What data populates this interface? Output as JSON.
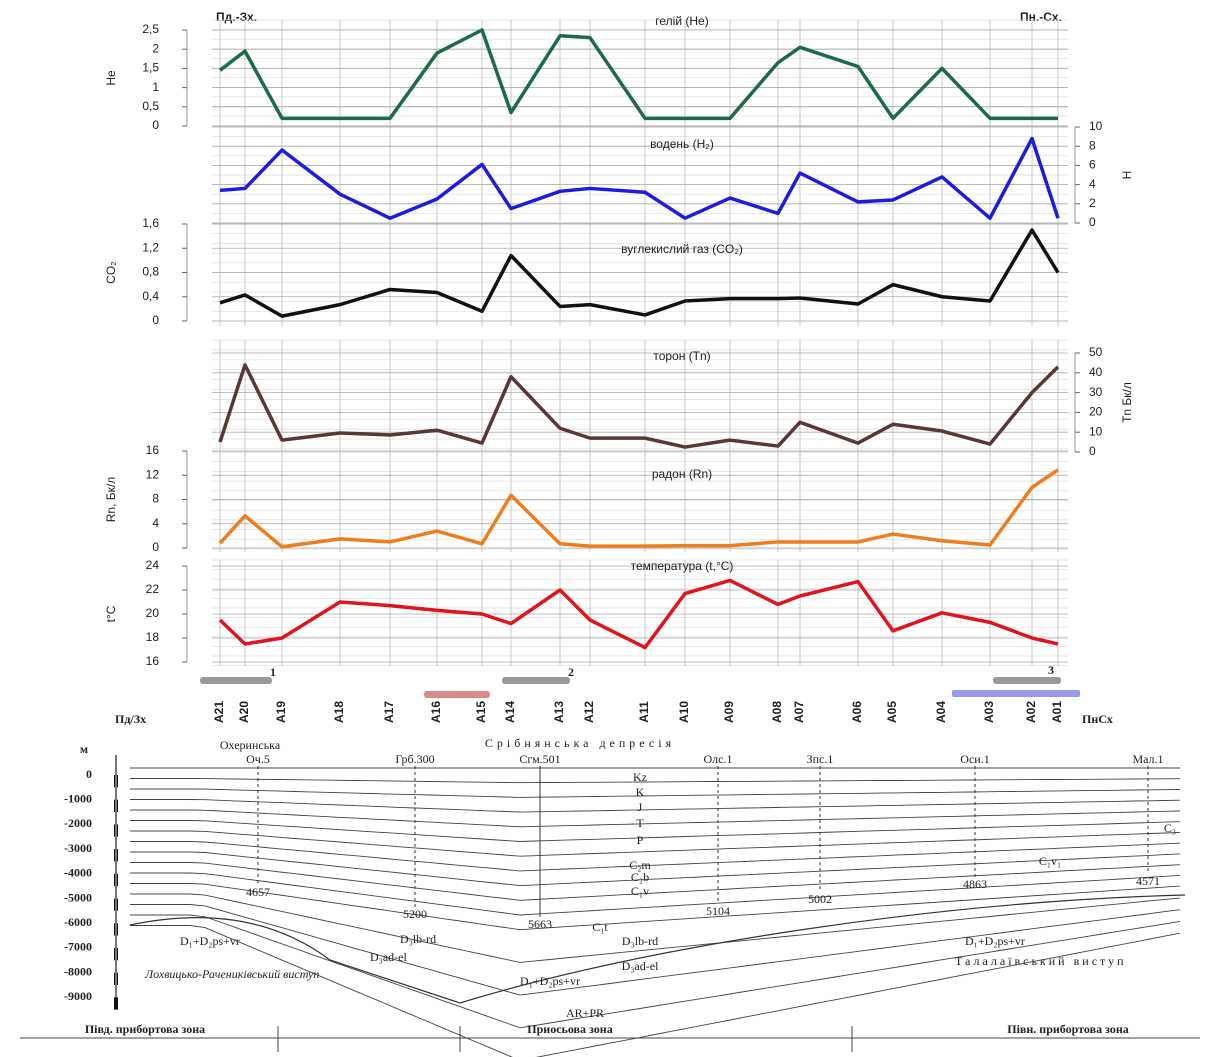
{
  "chart_data": [
    {
      "type": "line",
      "ylabel": "He",
      "ylim": [
        0,
        2.5
      ],
      "yticks": [
        0,
        {
          "value": 0.5,
          "label": "0,5"
        },
        1,
        {
          "value": 1.5,
          "label": "1,5"
        },
        2,
        {
          "value": 2.5,
          "label": "2,5"
        }
      ],
      "grid": true,
      "series": [
        {
          "name": "гелій (He)",
          "color": "#1b6b48",
          "values": [
            1.45,
            1.95,
            0.2,
            0.2,
            0.2,
            1.9,
            2.5,
            0.35,
            2.35,
            2.3,
            0.2,
            0.2,
            0.2,
            1.65,
            2.05,
            1.55,
            0.2,
            1.5,
            0.2,
            0.2,
            0.2
          ]
        }
      ]
    },
    {
      "type": "line",
      "y2label": "H",
      "y2lim": [
        0,
        10
      ],
      "y2ticks": [
        0,
        2,
        4,
        6,
        8,
        10
      ],
      "grid": true,
      "series": [
        {
          "name": "водень (H₂)",
          "color": "#1c1ce0",
          "axis": "y2",
          "values": [
            3.4,
            3.6,
            7.6,
            3,
            0.5,
            2.5,
            6.1,
            1.5,
            3.3,
            3.6,
            3.2,
            0.5,
            2.6,
            1,
            5.2,
            2.2,
            2.4,
            4.8,
            0.5,
            8.8,
            0.5
          ]
        }
      ]
    },
    {
      "type": "line",
      "ylabel": "CO₂",
      "ylim": [
        0,
        1.6
      ],
      "yticks": [
        0,
        {
          "value": 0.4,
          "label": "0,4"
        },
        {
          "value": 0.8,
          "label": "0,8"
        },
        {
          "value": 1.2,
          "label": "1,2"
        },
        {
          "value": 1.6,
          "label": "1,6"
        }
      ],
      "grid": true,
      "series": [
        {
          "name": "вуглекислий газ (CO₂)",
          "color": "#111111",
          "values": [
            0.3,
            0.43,
            0.08,
            0.27,
            0.52,
            0.47,
            0.16,
            1.08,
            0.24,
            0.27,
            0.1,
            0.33,
            0.37,
            0.37,
            0.38,
            0.28,
            0.6,
            0.4,
            0.33,
            1.5,
            0.8
          ]
        }
      ]
    },
    {
      "type": "line",
      "y2label": "Tn Бк/л",
      "y2lim": [
        0,
        50
      ],
      "y2ticks": [
        0,
        10,
        20,
        30,
        40,
        50
      ],
      "grid": true,
      "series": [
        {
          "name": "торон (Tn)",
          "color": "#5a3636",
          "axis": "y2",
          "values": [
            5,
            44,
            6,
            9.6,
            8.6,
            11,
            4.5,
            38,
            12,
            7,
            7,
            2.5,
            6,
            3,
            15,
            4.5,
            14,
            10.6,
            4,
            30,
            43
          ]
        }
      ]
    },
    {
      "type": "line",
      "ylabel": "Rn, Бк/л",
      "ylim": [
        0,
        16
      ],
      "yticks": [
        0,
        4,
        8,
        12,
        16
      ],
      "grid": true,
      "series": [
        {
          "name": "радон (Rn)",
          "color": "#ee7d1c",
          "values": [
            0.8,
            5.3,
            0.2,
            1.5,
            1,
            2.8,
            0.7,
            8.7,
            0.7,
            0.3,
            0.3,
            0.4,
            0.4,
            1,
            1,
            1,
            2.3,
            1.2,
            0.5,
            10,
            12.9
          ]
        }
      ]
    },
    {
      "type": "line",
      "ylabel": "t°C",
      "ylim": [
        16,
        24
      ],
      "yticks": [
        16,
        18,
        20,
        22,
        24
      ],
      "grid": true,
      "categories": [
        "A21",
        "A20",
        "A19",
        "A18",
        "A17",
        "A16",
        "A15",
        "A14",
        "A13",
        "A12",
        "A11",
        "A10",
        "A09",
        "A08",
        "A07",
        "A06",
        "A05",
        "A04",
        "A03",
        "A02",
        "A01"
      ],
      "series": [
        {
          "name": "температура (t,°C)",
          "color": "#e0141c",
          "values": [
            19.5,
            17.5,
            18,
            21,
            20.7,
            20.3,
            20,
            19.2,
            22,
            19.5,
            17.2,
            21.7,
            22.8,
            20.8,
            21.5,
            22.7,
            18.6,
            20.1,
            19.3,
            18,
            17.5
          ]
        }
      ]
    }
  ],
  "header": {
    "left": "Пд.-Зх.",
    "right": "Пн.-Сх.",
    "axis_left": "Пд/Зх",
    "axis_right": "ПнСх",
    "markers": [
      "1",
      "2",
      "3"
    ]
  },
  "section": {
    "unit": "м",
    "regions": [
      "Охеринська",
      "Срібнянська депресія"
    ],
    "depth_ticks": [
      "0",
      "-1000",
      "-2000",
      "-3000",
      "-4000",
      "-5000",
      "-6000",
      "-7000",
      "-8000",
      "-9000"
    ],
    "wells": [
      {
        "name": "Оч.5",
        "depth": "4657"
      },
      {
        "name": "Грб.300",
        "depth": "5200"
      },
      {
        "name": "Сгм.501",
        "depth": "5663"
      },
      {
        "name": "Олс.1",
        "depth": "5104"
      },
      {
        "name": "Зпс.1",
        "depth": "5002"
      },
      {
        "name": "Оси.1",
        "depth": "4863"
      },
      {
        "name": "Мал.1",
        "depth": "4571"
      }
    ],
    "layers": [
      "Kz",
      "K",
      "J",
      "T",
      "P",
      "C₃",
      "C₂m",
      "C₂b",
      "C₁v",
      "C₁v₁",
      "C₁t",
      "D₃lb-rd",
      "D₃ad-el",
      "D₁+D₂ps+vr",
      "AR+PR"
    ],
    "massifs": [
      "Лохвицько-Рачениківський виступ",
      "Талалаївський виступ"
    ],
    "zones": [
      "Півд. прибортова зона",
      "Приосьова зона",
      "Півн. прибортова зона"
    ]
  }
}
